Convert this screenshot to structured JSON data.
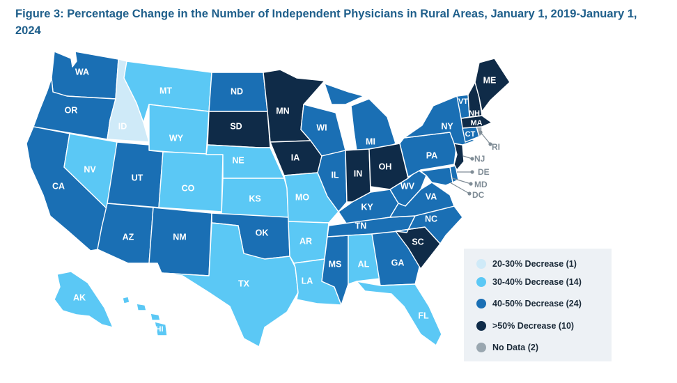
{
  "title": "Figure 3: Percentage Change in the Number of Independent Physicians in Rural Areas, January 1, 2019-January 1, 2024",
  "colors": {
    "c20_30": "#cfeaf8",
    "c30_40": "#5bc8f5",
    "c40_50": "#1a6fb4",
    "c50plus": "#0f2b48",
    "nodata": "#9aa7b0"
  },
  "legend": [
    {
      "label": "20-30% Decrease (1)",
      "color": "#cfeaf8"
    },
    {
      "label": "30-40% Decrease (14)",
      "color": "#5bc8f5"
    },
    {
      "label": "40-50% Decrease (24)",
      "color": "#1a6fb4"
    },
    {
      "label": ">50% Decrease (10)",
      "color": "#0f2b48"
    },
    {
      "label": "No Data (2)",
      "color": "#9aa7b0"
    }
  ],
  "states": {
    "WA": "WA",
    "OR": "OR",
    "CA": "CA",
    "ID": "ID",
    "NV": "NV",
    "MT": "MT",
    "WY": "WY",
    "UT": "UT",
    "AZ": "AZ",
    "CO": "CO",
    "NM": "NM",
    "ND": "ND",
    "SD": "SD",
    "NE": "NE",
    "KS": "KS",
    "OK": "OK",
    "TX": "TX",
    "MN": "MN",
    "IA": "IA",
    "MO": "MO",
    "AR": "AR",
    "LA": "LA",
    "WI": "WI",
    "IL": "IL",
    "MS": "MS",
    "MI": "MI",
    "IN": "IN",
    "KY": "KY",
    "TN": "TN",
    "AL": "AL",
    "OH": "OH",
    "WV": "WV",
    "VA": "VA",
    "NC": "NC",
    "SC": "SC",
    "GA": "GA",
    "FL": "FL",
    "PA": "PA",
    "NY": "NY",
    "VT": "VT",
    "NH": "NH",
    "ME": "ME",
    "MA": "MA",
    "CT": "CT",
    "RI": "RI",
    "NJ": "NJ",
    "DE": "DE",
    "MD": "MD",
    "DC": "DC",
    "AK": "AK",
    "HI": "HI"
  }
}
